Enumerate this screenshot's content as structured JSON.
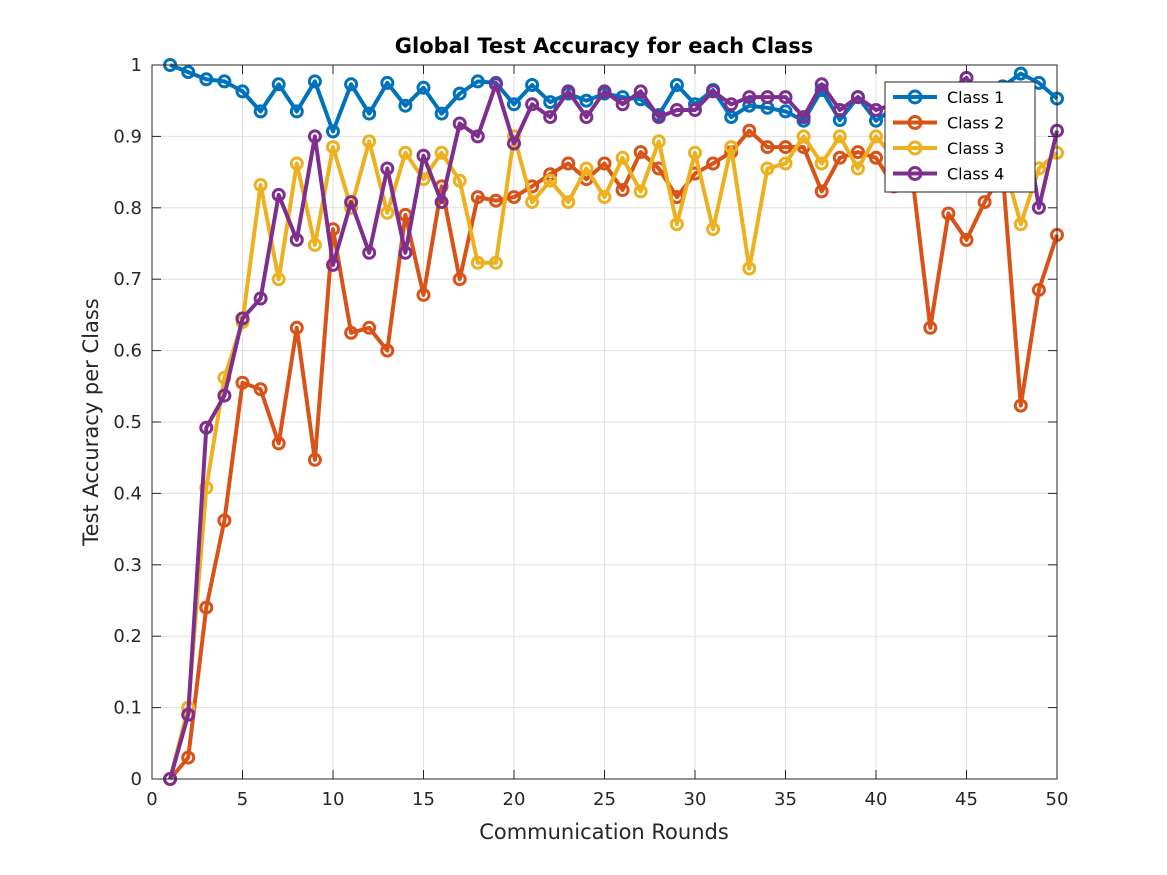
{
  "chart_data": {
    "type": "line",
    "title": "Global Test Accuracy for each Class",
    "xlabel": "Communication Rounds",
    "ylabel": "Test Accuracy per Class",
    "xlim": [
      0,
      50
    ],
    "ylim": [
      0,
      1
    ],
    "xticks": [
      0,
      5,
      10,
      15,
      20,
      25,
      30,
      35,
      40,
      45,
      50
    ],
    "yticks": [
      0,
      0.1,
      0.2,
      0.3,
      0.4,
      0.5,
      0.6,
      0.7,
      0.8,
      0.9,
      1
    ],
    "xtick_labels": [
      "0",
      "5",
      "10",
      "15",
      "20",
      "25",
      "30",
      "35",
      "40",
      "45",
      "50"
    ],
    "ytick_labels": [
      "0",
      "0.1",
      "0.2",
      "0.3",
      "0.4",
      "0.5",
      "0.6",
      "0.7",
      "0.8",
      "0.9",
      "1"
    ],
    "grid": true,
    "legend_position": "top-right",
    "marker": "circle",
    "x": [
      1,
      2,
      3,
      4,
      5,
      6,
      7,
      8,
      9,
      10,
      11,
      12,
      13,
      14,
      15,
      16,
      17,
      18,
      19,
      20,
      21,
      22,
      23,
      24,
      25,
      26,
      27,
      28,
      29,
      30,
      31,
      32,
      33,
      34,
      35,
      36,
      37,
      38,
      39,
      40,
      41,
      42,
      43,
      44,
      45,
      46,
      47,
      48,
      49,
      50
    ],
    "series": [
      {
        "name": "Class 1",
        "color": "#0072BD",
        "values": [
          1.0,
          0.99,
          0.98,
          0.977,
          0.963,
          0.935,
          0.973,
          0.935,
          0.977,
          0.907,
          0.973,
          0.932,
          0.975,
          0.943,
          0.968,
          0.932,
          0.96,
          0.977,
          0.975,
          0.945,
          0.972,
          0.948,
          0.96,
          0.95,
          0.96,
          0.955,
          0.952,
          0.93,
          0.972,
          0.945,
          0.965,
          0.927,
          0.943,
          0.94,
          0.935,
          0.922,
          0.965,
          0.923,
          0.955,
          0.922,
          0.94,
          0.95,
          0.955,
          0.96,
          0.965,
          0.96,
          0.97,
          0.988,
          0.975,
          0.953
        ]
      },
      {
        "name": "Class 2",
        "color": "#D95319",
        "values": [
          0.0,
          0.03,
          0.24,
          0.362,
          0.555,
          0.546,
          0.47,
          0.632,
          0.447,
          0.77,
          0.625,
          0.632,
          0.6,
          0.79,
          0.678,
          0.83,
          0.7,
          0.815,
          0.81,
          0.815,
          0.83,
          0.847,
          0.862,
          0.84,
          0.862,
          0.825,
          0.878,
          0.855,
          0.815,
          0.848,
          0.862,
          0.878,
          0.908,
          0.885,
          0.885,
          0.885,
          0.823,
          0.87,
          0.878,
          0.87,
          0.83,
          0.845,
          0.632,
          0.792,
          0.755,
          0.808,
          0.85,
          0.523,
          0.685,
          0.762
        ]
      },
      {
        "name": "Class 3",
        "color": "#EDB120",
        "values": [
          0.0,
          0.1,
          0.408,
          0.562,
          0.64,
          0.832,
          0.7,
          0.862,
          0.748,
          0.885,
          0.8,
          0.893,
          0.793,
          0.877,
          0.84,
          0.877,
          0.838,
          0.723,
          0.723,
          0.9,
          0.808,
          0.838,
          0.808,
          0.855,
          0.815,
          0.87,
          0.823,
          0.893,
          0.777,
          0.877,
          0.77,
          0.885,
          0.715,
          0.855,
          0.862,
          0.9,
          0.862,
          0.9,
          0.855,
          0.9,
          0.87,
          0.877,
          0.893,
          0.877,
          0.885,
          0.9,
          0.87,
          0.777,
          0.855,
          0.877
        ]
      },
      {
        "name": "Class 4",
        "color": "#7E2F8E",
        "values": [
          0.0,
          0.09,
          0.492,
          0.537,
          0.645,
          0.673,
          0.818,
          0.755,
          0.9,
          0.72,
          0.808,
          0.737,
          0.855,
          0.737,
          0.873,
          0.808,
          0.918,
          0.9,
          0.973,
          0.89,
          0.945,
          0.927,
          0.963,
          0.927,
          0.963,
          0.945,
          0.963,
          0.927,
          0.937,
          0.937,
          0.963,
          0.945,
          0.955,
          0.955,
          0.955,
          0.927,
          0.973,
          0.937,
          0.955,
          0.937,
          0.945,
          0.955,
          0.955,
          0.963,
          0.982,
          0.945,
          0.945,
          0.963,
          0.8,
          0.908
        ]
      }
    ]
  }
}
